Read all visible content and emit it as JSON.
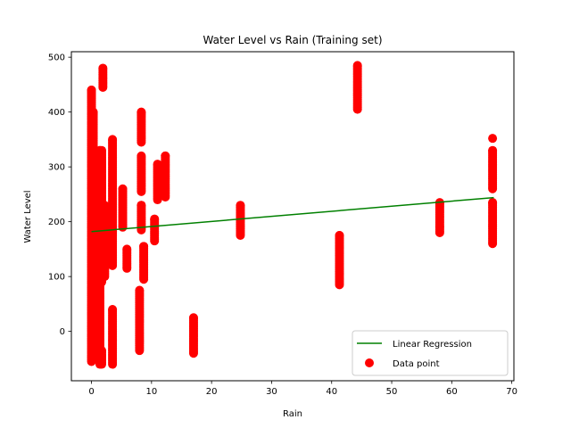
{
  "chart_data": {
    "type": "scatter",
    "title": "Water Level vs Rain (Training set)",
    "xlabel": "Rain",
    "ylabel": "Water Level",
    "xlim": [
      -3.35,
      70.35
    ],
    "ylim": [
      -90,
      510
    ],
    "xticks": [
      0,
      10,
      20,
      30,
      40,
      50,
      60,
      70
    ],
    "yticks": [
      0,
      100,
      200,
      300,
      400,
      500
    ],
    "grid": false,
    "legend_position": "lower-right",
    "series": [
      {
        "name": "Data point",
        "kind": "scatter",
        "color": "#ff0000",
        "column_ranges": [
          {
            "x": 0.0,
            "ymin": -55,
            "ymax": 440
          },
          {
            "x": 0.3,
            "ymin": -45,
            "ymax": 400
          },
          {
            "x": 0.6,
            "ymin": -40,
            "ymax": 300
          },
          {
            "x": 1.0,
            "ymin": 40,
            "ymax": 120
          },
          {
            "x": 1.4,
            "ymin": -60,
            "ymax": 330
          },
          {
            "x": 1.7,
            "ymin": 230,
            "ymax": 330
          },
          {
            "x": 1.7,
            "ymin": 90,
            "ymax": 230
          },
          {
            "x": 1.7,
            "ymin": -60,
            "ymax": -35
          },
          {
            "x": 1.9,
            "ymin": 445,
            "ymax": 480
          },
          {
            "x": 2.2,
            "ymin": 100,
            "ymax": 230
          },
          {
            "x": 3.5,
            "ymin": 120,
            "ymax": 350
          },
          {
            "x": 3.5,
            "ymin": -60,
            "ymax": 40
          },
          {
            "x": 5.2,
            "ymin": 190,
            "ymax": 260
          },
          {
            "x": 5.9,
            "ymin": 115,
            "ymax": 150
          },
          {
            "x": 8.0,
            "ymin": -35,
            "ymax": 75
          },
          {
            "x": 8.3,
            "ymin": 185,
            "ymax": 230
          },
          {
            "x": 8.3,
            "ymin": 255,
            "ymax": 320
          },
          {
            "x": 8.3,
            "ymin": 345,
            "ymax": 400
          },
          {
            "x": 8.7,
            "ymin": 95,
            "ymax": 155
          },
          {
            "x": 10.5,
            "ymin": 165,
            "ymax": 205
          },
          {
            "x": 11.0,
            "ymin": 240,
            "ymax": 305
          },
          {
            "x": 12.3,
            "ymin": 245,
            "ymax": 320
          },
          {
            "x": 17.0,
            "ymin": -40,
            "ymax": 25
          },
          {
            "x": 24.8,
            "ymin": 175,
            "ymax": 230
          },
          {
            "x": 41.3,
            "ymin": 85,
            "ymax": 175
          },
          {
            "x": 44.3,
            "ymin": 405,
            "ymax": 485
          },
          {
            "x": 58.0,
            "ymin": 180,
            "ymax": 235
          },
          {
            "x": 66.8,
            "ymin": 160,
            "ymax": 235
          },
          {
            "x": 66.8,
            "ymin": 260,
            "ymax": 330
          }
        ],
        "points": [
          {
            "x": 66.8,
            "y": 352
          }
        ]
      },
      {
        "name": "Linear Regression",
        "kind": "line",
        "color": "#008000",
        "x": [
          0,
          67
        ],
        "y": [
          182,
          244
        ]
      }
    ]
  }
}
